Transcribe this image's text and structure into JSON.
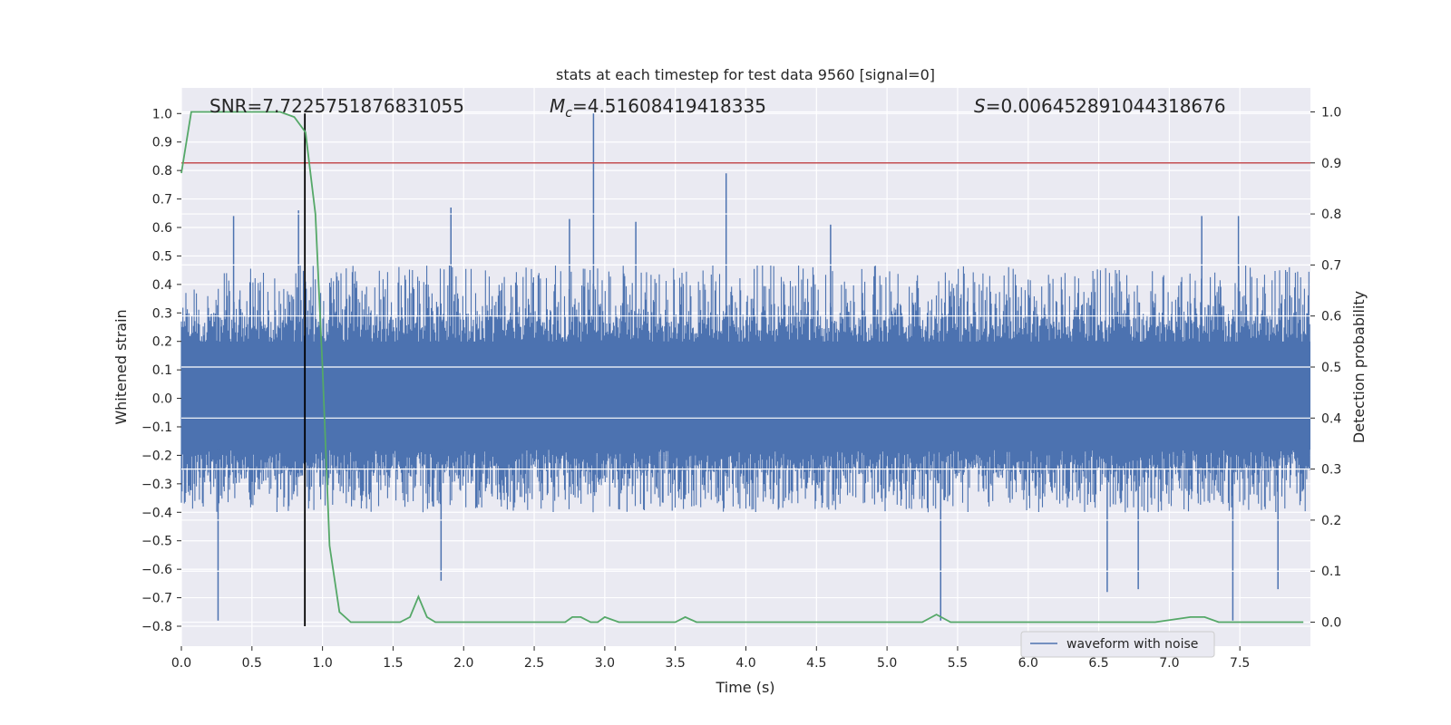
{
  "chart_data": {
    "type": "line",
    "title": "stats at each timestep for test data 9560 [signal=0]",
    "xlabel": "Time (s)",
    "ylabel_left": "Whitened strain",
    "ylabel_right": "Detection probability",
    "xlim": [
      0.0,
      8.0
    ],
    "ylim_left": [
      -0.87,
      1.09
    ],
    "ylim_right": [
      -0.047,
      1.047
    ],
    "x_ticks": [
      "0.0",
      "0.5",
      "1.0",
      "1.5",
      "2.0",
      "2.5",
      "3.0",
      "3.5",
      "4.0",
      "4.5",
      "5.0",
      "5.5",
      "6.0",
      "6.5",
      "7.0",
      "7.5"
    ],
    "y_left_ticks": [
      "1.0",
      "0.9",
      "0.8",
      "0.7",
      "0.6",
      "0.5",
      "0.4",
      "0.3",
      "0.2",
      "0.1",
      "0.0",
      "−0.1",
      "−0.2",
      "−0.3",
      "−0.4",
      "−0.5",
      "−0.6",
      "−0.7",
      "−0.8"
    ],
    "y_right_ticks": [
      "1.0",
      "0.9",
      "0.8",
      "0.7",
      "0.6",
      "0.5",
      "0.4",
      "0.3",
      "0.2",
      "0.1",
      "0.0"
    ],
    "annotations": {
      "snr": "SNR=7.7225751876831055",
      "mc_symbol": "M",
      "mc_sub": "c",
      "mc_value": "=4.51608419418335",
      "s_symbol": "S",
      "s_value": "=0.006452891044318676"
    },
    "legend": {
      "label": "waveform with noise",
      "placement": "lower right"
    },
    "threshold": {
      "value": 0.9,
      "axis": "right",
      "color": "#c44e52"
    },
    "marker_time": {
      "value": 0.875,
      "color": "#000000"
    },
    "series": [
      {
        "name": "waveform with noise",
        "axis": "left",
        "color": "#4c72b0",
        "envelope_typical": [
          -0.4,
          0.47
        ],
        "spikes": [
          {
            "x": 0.26,
            "y": -0.78
          },
          {
            "x": 0.37,
            "y": 0.64
          },
          {
            "x": 0.83,
            "y": 0.66
          },
          {
            "x": 1.91,
            "y": 0.67
          },
          {
            "x": 1.84,
            "y": -0.64
          },
          {
            "x": 2.75,
            "y": 0.63
          },
          {
            "x": 2.92,
            "y": 1.0
          },
          {
            "x": 3.22,
            "y": 0.62
          },
          {
            "x": 3.86,
            "y": 0.79
          },
          {
            "x": 4.6,
            "y": 0.61
          },
          {
            "x": 5.38,
            "y": -0.78
          },
          {
            "x": 6.56,
            "y": -0.68
          },
          {
            "x": 6.78,
            "y": -0.67
          },
          {
            "x": 7.23,
            "y": 0.64
          },
          {
            "x": 7.45,
            "y": -0.78
          },
          {
            "x": 7.49,
            "y": 0.64
          },
          {
            "x": 7.77,
            "y": -0.67
          }
        ]
      },
      {
        "axis": "right",
        "color": "#55a868",
        "points": [
          [
            0.0,
            0.88
          ],
          [
            0.07,
            1.0
          ],
          [
            0.15,
            1.0
          ],
          [
            0.7,
            1.0
          ],
          [
            0.8,
            0.99
          ],
          [
            0.88,
            0.96
          ],
          [
            0.95,
            0.8
          ],
          [
            1.0,
            0.5
          ],
          [
            1.05,
            0.15
          ],
          [
            1.12,
            0.02
          ],
          [
            1.2,
            0.0
          ],
          [
            1.55,
            0.0
          ],
          [
            1.62,
            0.01
          ],
          [
            1.68,
            0.05
          ],
          [
            1.74,
            0.01
          ],
          [
            1.8,
            0.0
          ],
          [
            2.4,
            0.0
          ],
          [
            2.72,
            0.0
          ],
          [
            2.77,
            0.01
          ],
          [
            2.83,
            0.01
          ],
          [
            2.9,
            0.0
          ],
          [
            2.95,
            0.0
          ],
          [
            3.0,
            0.01
          ],
          [
            3.1,
            0.0
          ],
          [
            3.5,
            0.0
          ],
          [
            3.57,
            0.01
          ],
          [
            3.65,
            0.0
          ],
          [
            5.25,
            0.0
          ],
          [
            5.35,
            0.015
          ],
          [
            5.45,
            0.0
          ],
          [
            6.9,
            0.0
          ],
          [
            7.15,
            0.01
          ],
          [
            7.25,
            0.01
          ],
          [
            7.35,
            0.0
          ],
          [
            7.95,
            0.0
          ]
        ]
      }
    ]
  }
}
